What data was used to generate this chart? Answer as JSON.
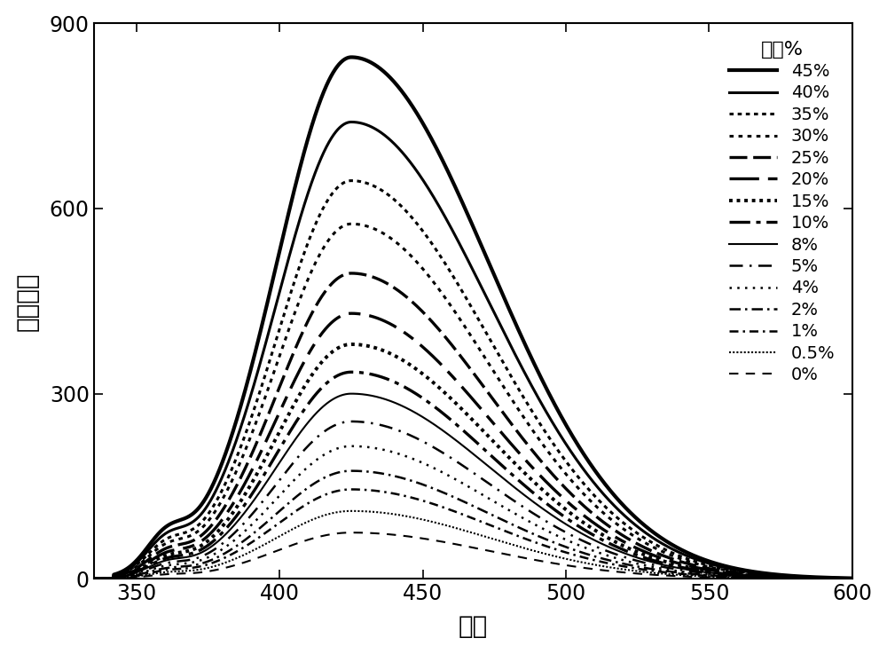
{
  "xlabel": "波长",
  "ylabel": "荧光强度",
  "xlim": [
    335,
    600
  ],
  "ylim": [
    0,
    900
  ],
  "xticks": [
    350,
    400,
    450,
    500,
    550,
    600
  ],
  "yticks": [
    0,
    300,
    600,
    900
  ],
  "legend_title": "甲醇%",
  "background_color": "#ffffff",
  "series": [
    {
      "label": "45%",
      "peak": 845,
      "linestyle": "solid",
      "linewidth": 3.0
    },
    {
      "label": "40%",
      "peak": 740,
      "linestyle": "solid",
      "linewidth": 2.2
    },
    {
      "label": "35%",
      "peak": 645,
      "linestyle": "densedot",
      "linewidth": 2.2
    },
    {
      "label": "30%",
      "peak": 575,
      "linestyle": "densedot2",
      "linewidth": 2.2
    },
    {
      "label": "25%",
      "peak": 495,
      "linestyle": "dashdash",
      "linewidth": 2.4
    },
    {
      "label": "20%",
      "peak": 430,
      "linestyle": "longdash",
      "linewidth": 2.4
    },
    {
      "label": "15%",
      "peak": 380,
      "linestyle": "dotted",
      "linewidth": 2.8
    },
    {
      "label": "10%",
      "peak": 335,
      "linestyle": "dashdot",
      "linewidth": 2.4
    },
    {
      "label": "8%",
      "peak": 300,
      "linestyle": "solid",
      "linewidth": 1.5
    },
    {
      "label": "5%",
      "peak": 255,
      "linestyle": "dashdot2",
      "linewidth": 1.8
    },
    {
      "label": "4%",
      "peak": 215,
      "linestyle": "dotted2",
      "linewidth": 1.8
    },
    {
      "label": "2%",
      "peak": 175,
      "linestyle": "dashdot3",
      "linewidth": 1.8
    },
    {
      "label": "1%",
      "peak": 145,
      "linestyle": "dashdot4",
      "linewidth": 1.8
    },
    {
      "label": "0.5%",
      "peak": 110,
      "linestyle": "finedot",
      "linewidth": 1.5
    },
    {
      "label": "0%",
      "peak": 75,
      "linestyle": "dashed",
      "linewidth": 1.5
    }
  ]
}
